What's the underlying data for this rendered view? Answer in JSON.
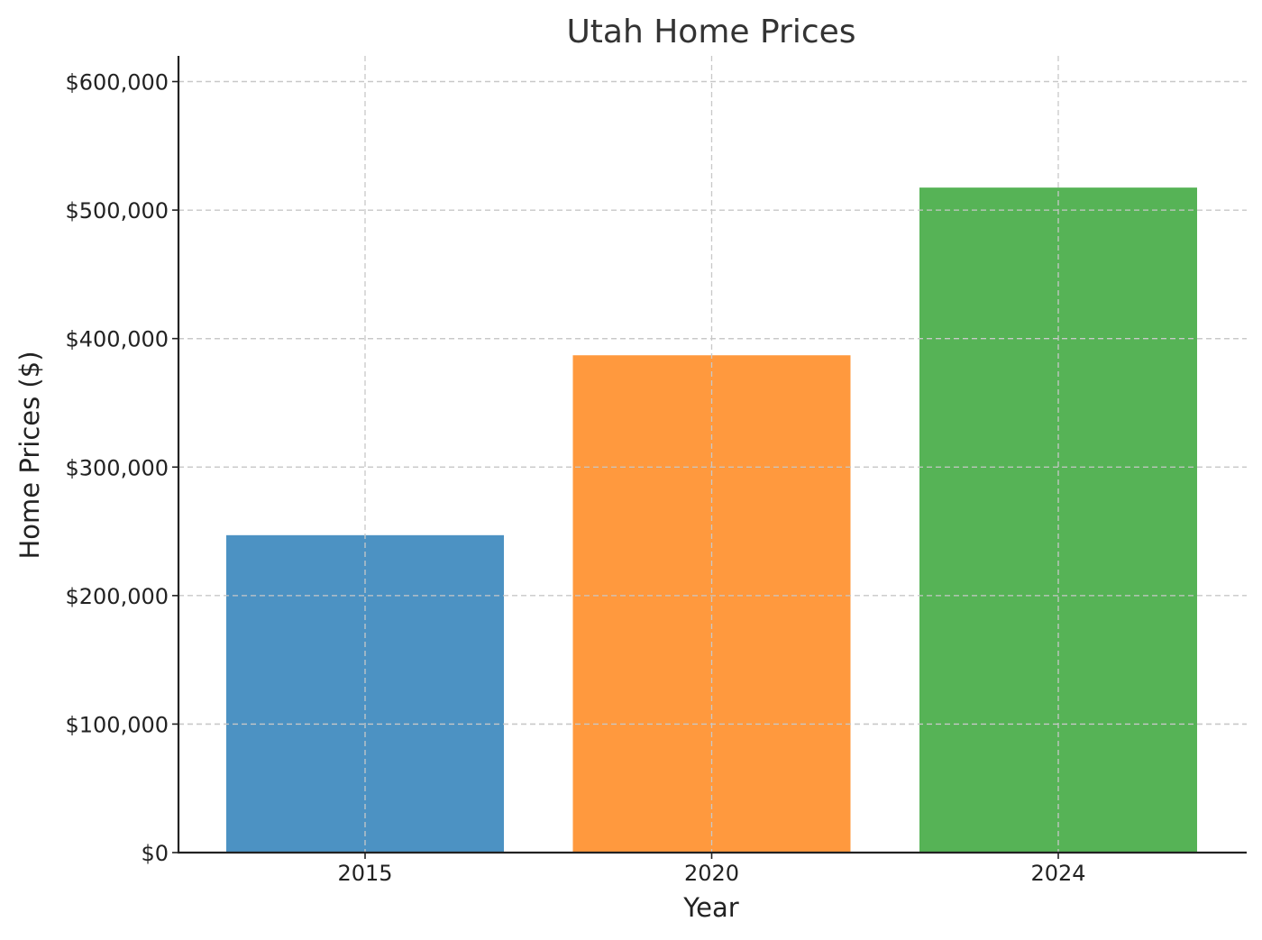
{
  "chart_data": {
    "type": "bar",
    "title": "Utah Home Prices",
    "xlabel": "Year",
    "ylabel": "Home Prices ($)",
    "categories": [
      "2015",
      "2020",
      "2024"
    ],
    "values": [
      247000,
      387000,
      517500
    ],
    "colors": [
      "#1f77b4",
      "#ff7f0e",
      "#2ca02c"
    ],
    "ylim": [
      0,
      620000
    ],
    "yticks": [
      0,
      100000,
      200000,
      300000,
      400000,
      500000,
      600000
    ],
    "ytick_labels": [
      "$0",
      "$100,000",
      "$200,000",
      "$300,000",
      "$400,000",
      "$500,000",
      "$600,000"
    ],
    "grid": true,
    "grid_style": "dashed"
  }
}
